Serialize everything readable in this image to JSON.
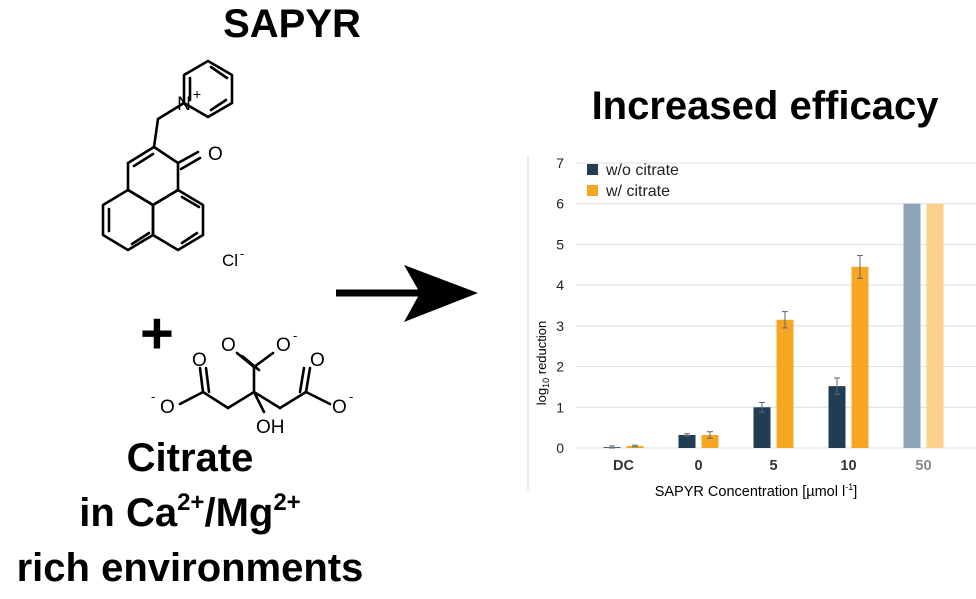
{
  "left_panel": {
    "title": "SAPYR",
    "cation_label": "N",
    "cation_charge": "+",
    "ketone_label": "O",
    "counterion_label": "Cl",
    "counterion_charge": "-",
    "plus_sign": "+",
    "carboxylate_top": "O",
    "carboxylate_top_charge": "-",
    "carbonyl_labels": [
      "O",
      "O",
      "O"
    ],
    "carboxylate_left": "O",
    "carboxylate_left_charge": "-",
    "carboxylate_right": "O",
    "carboxylate_right_charge": "-",
    "hydroxyl_label": "OH",
    "citrate_title": "Citrate",
    "env_prefix": "in Ca",
    "ca_charge": "2+",
    "env_separator": "/Mg",
    "mg_charge": "2+",
    "env_line3": "rich environments"
  },
  "headline": "Increased efficacy",
  "colors": {
    "without_citrate": "#1f3e56",
    "with_citrate": "#f5a623",
    "without_citrate_faded": "#8fa3b8",
    "with_citrate_faded": "#fbd08c",
    "grid": "#e3e3e3"
  },
  "chart_data": {
    "type": "bar",
    "categories": [
      "DC",
      "0",
      "5",
      "10",
      "50"
    ],
    "series": [
      {
        "name": "w/o citrate",
        "values": [
          0.02,
          0.32,
          1.0,
          1.52,
          6.0
        ],
        "errors": [
          0.03,
          0.03,
          0.12,
          0.2,
          0
        ]
      },
      {
        "name": "w/ citrate",
        "values": [
          0.05,
          0.32,
          3.15,
          4.45,
          6.0
        ],
        "errors": [
          0.02,
          0.08,
          0.2,
          0.28,
          0
        ]
      }
    ],
    "yticks": [
      0,
      1,
      2,
      3,
      4,
      5,
      6,
      7
    ],
    "ylim": [
      0,
      7
    ],
    "ylabel_prefix": "log",
    "ylabel_sub": "10",
    "ylabel_suffix": " reduction",
    "xlabel_main": "SAPYR Concentration [µmol l",
    "xlabel_sup": "-1",
    "xlabel_end": "]",
    "legend_position": "top-left",
    "grid": true
  }
}
